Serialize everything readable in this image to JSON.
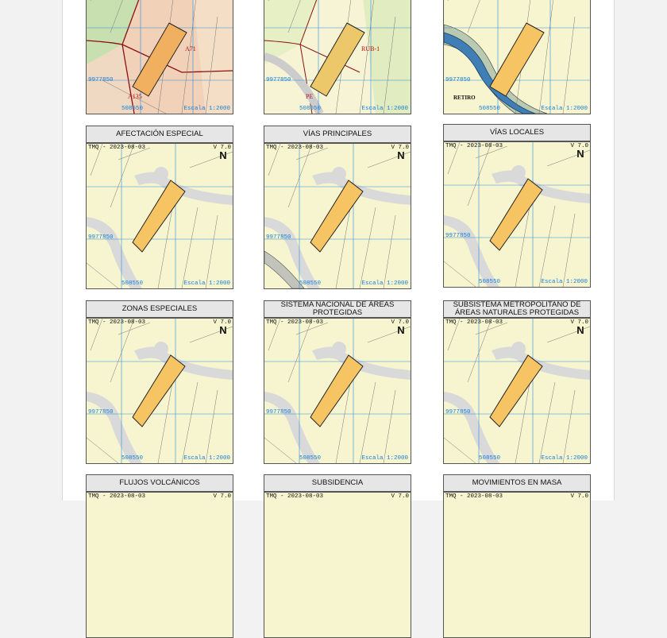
{
  "map_common": {
    "tmq": "TMQ - 2023-08-03",
    "version": "V 7.0",
    "north": "N",
    "y_coord": "9977850",
    "x_coord": "508550",
    "scale": "Escala 1:2000"
  },
  "row0": {
    "p0": {
      "labels": [
        "A71",
        "A135"
      ]
    },
    "p1": {
      "labels": [
        "RUB-1",
        "PE"
      ]
    },
    "p2": {
      "labels": [
        "RETIRO"
      ]
    }
  },
  "row1": {
    "p0": {
      "title": "AFECTACIÓN ESPECIAL"
    },
    "p1": {
      "title": "VÍAS PRINCIPALES"
    },
    "p2": {
      "title": "VÍAS LOCALES"
    }
  },
  "row2": {
    "p0": {
      "title": "ZONAS ESPECIALES"
    },
    "p1": {
      "title": "SISTEMA NACIONAL DE ÁREAS PROTEGIDAS"
    },
    "p2": {
      "title": "SUBSISTEMA METROPOLITANO DE ÁREAS NATURALES PROTEGIDAS"
    }
  },
  "row3": {
    "p0": {
      "title": "FLUJOS VOLCÁNICOS"
    },
    "p1": {
      "title": "SUBSIDENCIA"
    },
    "p2": {
      "title": "MOVIMIENTOS EN MASA"
    }
  },
  "colors": {
    "map_bg": "#f7f5cf",
    "parcel_fill": "#f7c463",
    "grid_blue": "#2a8de0",
    "road_gray": "#d9d9d9",
    "river_blue": "#3f7fb6"
  }
}
